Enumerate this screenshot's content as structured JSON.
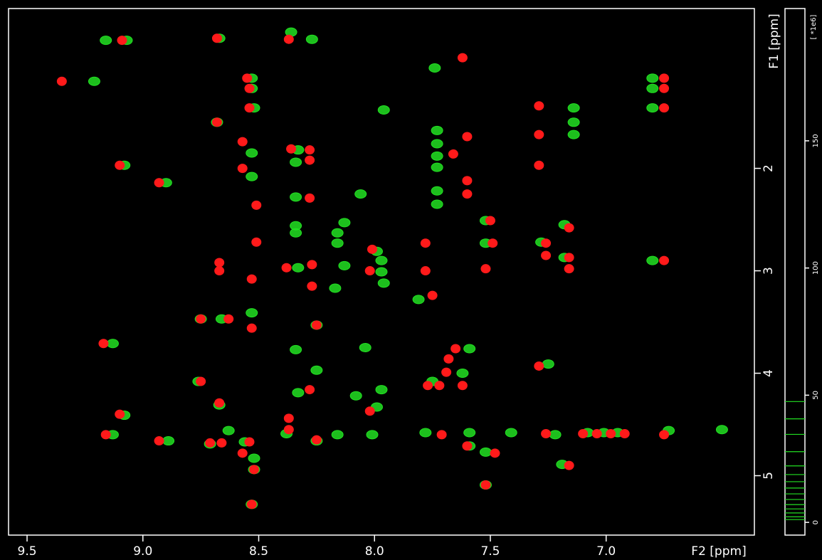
{
  "chart_data": {
    "type": "scatter",
    "x_label": "F2 [ppm]",
    "y_label": "F1 [ppm]",
    "xlim": [
      9.58,
      6.36
    ],
    "ylim": [
      0.44,
      5.58
    ],
    "xticks": [
      9.5,
      {
        "value": 9,
        "label": "9.0"
      },
      8.5,
      {
        "value": 8,
        "label": "8.0"
      },
      7.5,
      {
        "value": 7,
        "label": "7.0"
      }
    ],
    "yticks": [
      2,
      3,
      4,
      5
    ],
    "series": [
      {
        "color": "#22e022",
        "x": [
          9.16,
          9.07,
          8.67,
          8.36,
          8.27,
          9.21,
          7.74,
          7.96,
          7.14,
          7.14,
          7.14,
          6.8,
          6.8,
          6.8,
          8.53,
          8.53,
          8.52,
          8.68,
          8.53,
          8.53,
          8.9,
          9.08,
          8.33,
          8.34,
          7.73,
          7.73,
          7.73,
          7.73,
          7.73,
          7.73,
          8.06,
          8.34,
          8.34,
          8.34,
          8.13,
          8.16,
          8.16,
          7.99,
          7.97,
          7.52,
          7.52,
          7.28,
          7.18,
          7.18,
          6.8,
          8.33,
          8.13,
          7.97,
          7.96,
          8.17,
          7.81,
          8.53,
          8.75,
          8.66,
          8.25,
          9.13,
          8.34,
          8.04,
          7.59,
          8.25,
          7.62,
          7.75,
          7.25,
          8.76,
          8.67,
          8.33,
          7.97,
          8.08,
          7.99,
          9.08,
          9.13,
          8.89,
          8.71,
          8.63,
          8.56,
          8.16,
          8.01,
          7.78,
          7.59,
          7.41,
          7.22,
          7.08,
          7.01,
          6.95,
          6.73,
          6.5,
          7.59,
          7.52,
          8.52,
          8.52,
          8.53,
          7.19,
          7.52,
          8.25,
          8.38
        ],
        "values": [
          0.75,
          0.75,
          0.73,
          0.67,
          0.74,
          1.15,
          1.02,
          1.43,
          1.41,
          1.55,
          1.67,
          1.12,
          1.22,
          1.41,
          1.12,
          1.22,
          1.41,
          1.55,
          1.85,
          2.08,
          2.14,
          1.97,
          1.82,
          1.94,
          1.63,
          1.76,
          1.88,
          1.99,
          2.22,
          2.35,
          2.25,
          2.28,
          2.56,
          2.63,
          2.53,
          2.63,
          2.73,
          2.81,
          2.9,
          2.51,
          2.73,
          2.72,
          2.55,
          2.87,
          2.9,
          2.97,
          2.95,
          3.01,
          3.12,
          3.17,
          3.28,
          3.41,
          3.47,
          3.47,
          3.53,
          3.71,
          3.77,
          3.75,
          3.76,
          3.97,
          4.0,
          4.08,
          3.91,
          4.08,
          4.31,
          4.19,
          4.16,
          4.22,
          4.33,
          4.41,
          4.6,
          4.66,
          4.69,
          4.56,
          4.67,
          4.6,
          4.6,
          4.58,
          4.58,
          4.58,
          4.6,
          4.58,
          4.58,
          4.58,
          4.56,
          4.55,
          4.71,
          4.77,
          4.83,
          4.94,
          5.28,
          4.89,
          5.09,
          4.66,
          4.59
        ]
      },
      {
        "color": "#ff1a1a",
        "x": [
          9.09,
          8.68,
          8.37,
          9.35,
          7.62,
          8.55,
          8.54,
          8.54,
          8.68,
          8.57,
          8.36,
          8.28,
          8.28,
          8.57,
          8.93,
          9.1,
          8.51,
          8.28,
          8.51,
          7.78,
          7.5,
          7.49,
          7.29,
          7.29,
          7.29,
          7.26,
          7.26,
          7.6,
          7.6,
          7.6,
          7.66,
          7.16,
          7.16,
          6.75,
          6.75,
          6.75,
          6.75,
          8.67,
          8.67,
          8.38,
          8.27,
          8.27,
          8.01,
          8.02,
          8.53,
          7.78,
          7.52,
          7.16,
          7.75,
          8.75,
          8.63,
          8.25,
          9.17,
          8.53,
          7.65,
          7.68,
          7.69,
          7.72,
          7.77,
          7.62,
          7.29,
          8.75,
          8.67,
          8.28,
          8.02,
          8.37,
          8.37,
          9.1,
          9.16,
          8.93,
          8.71,
          8.66,
          8.54,
          8.25,
          8.57,
          8.52,
          8.53,
          7.26,
          7.1,
          7.04,
          6.98,
          6.92,
          7.48,
          7.6,
          7.16,
          7.52,
          7.71,
          6.75
        ],
        "values": [
          0.75,
          0.73,
          0.74,
          1.15,
          0.92,
          1.12,
          1.22,
          1.41,
          1.55,
          1.74,
          1.81,
          1.82,
          1.92,
          2.0,
          2.14,
          1.97,
          2.36,
          2.29,
          2.72,
          2.73,
          2.51,
          2.73,
          1.39,
          1.67,
          1.97,
          2.73,
          2.85,
          1.69,
          2.12,
          2.25,
          1.86,
          2.58,
          2.87,
          2.9,
          1.12,
          1.22,
          1.41,
          2.92,
          3.0,
          2.97,
          2.94,
          3.15,
          2.79,
          3.0,
          3.08,
          3.0,
          2.98,
          2.98,
          3.24,
          3.47,
          3.47,
          3.53,
          3.71,
          3.56,
          3.76,
          3.86,
          3.99,
          4.12,
          4.12,
          4.12,
          3.93,
          4.08,
          4.29,
          4.16,
          4.37,
          4.55,
          4.44,
          4.4,
          4.6,
          4.66,
          4.68,
          4.68,
          4.67,
          4.65,
          4.78,
          4.94,
          5.28,
          4.59,
          4.59,
          4.59,
          4.59,
          4.59,
          4.78,
          4.71,
          4.9,
          5.09,
          4.6,
          4.6
        ]
      }
    ],
    "level_axis": {
      "label": "[ *1e6]",
      "lim": [
        -5,
        202
      ],
      "ticks": [
        0,
        50,
        100,
        150
      ],
      "levels": [
        1.1,
        2.2,
        3.7,
        5.3,
        7,
        9,
        11.2,
        13.5,
        16,
        18.8,
        22.2,
        27.8,
        34.6,
        40.7,
        47.5
      ]
    }
  }
}
